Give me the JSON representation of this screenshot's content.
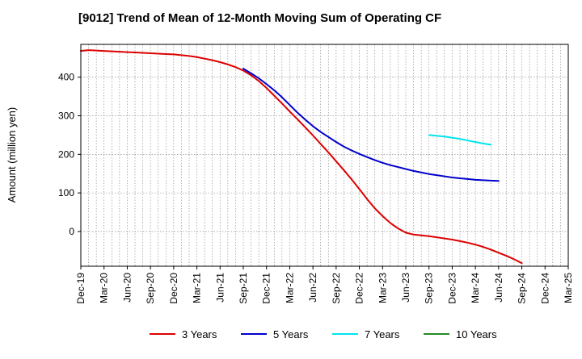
{
  "chart_data": {
    "type": "line",
    "title": "[9012]  Trend of Mean of 12-Month Moving Sum of Operating CF",
    "xlabel": "",
    "ylabel": "Amount (million yen)",
    "ylim": [
      -90,
      485
    ],
    "yticks": [
      0,
      100,
      200,
      300,
      400
    ],
    "x_start": "Dec-19",
    "x_end": "Mar-25",
    "xtick_labels": [
      "Dec-19",
      "Mar-20",
      "Jun-20",
      "Sep-20",
      "Dec-20",
      "Mar-21",
      "Jun-21",
      "Sep-21",
      "Dec-21",
      "Mar-22",
      "Jun-22",
      "Sep-22",
      "Dec-22",
      "Mar-23",
      "Jun-23",
      "Sep-23",
      "Dec-23",
      "Mar-24",
      "Jun-24",
      "Sep-24",
      "Dec-24",
      "Mar-25"
    ],
    "grid": true,
    "legend_position": "bottom",
    "series": [
      {
        "name": "3 Years",
        "color": "#dd0000",
        "start_month_index": 0,
        "values": [
          468,
          470,
          469,
          468,
          467,
          466,
          465,
          464,
          463,
          462,
          461,
          460,
          459,
          457,
          455,
          452,
          448,
          444,
          439,
          433,
          426,
          417,
          405,
          390,
          372,
          352,
          332,
          311,
          291,
          270,
          249,
          227,
          205,
          182,
          159,
          135,
          110,
          84,
          60,
          40,
          22,
          8,
          -3,
          -8,
          -10,
          -12,
          -15,
          -18,
          -21,
          -25,
          -29,
          -34,
          -40,
          -47,
          -55,
          -63,
          -72,
          -82
        ]
      },
      {
        "name": "5 Years",
        "color": "#0000cc",
        "start_month_index": 21,
        "values": [
          422,
          410,
          397,
          382,
          366,
          348,
          328,
          308,
          290,
          273,
          258,
          245,
          232,
          220,
          210,
          201,
          193,
          185,
          178,
          172,
          167,
          162,
          157,
          153,
          149,
          146,
          143,
          140,
          138,
          136,
          134,
          133,
          132,
          131
        ]
      },
      {
        "name": "7 Years",
        "color": "#00e5ee",
        "start_month_index": 45,
        "values": [
          250,
          248,
          246,
          243,
          240,
          236,
          232,
          228,
          225
        ]
      },
      {
        "name": "10 Years",
        "color": "#228b22",
        "start_month_index": 0,
        "values": []
      }
    ]
  }
}
